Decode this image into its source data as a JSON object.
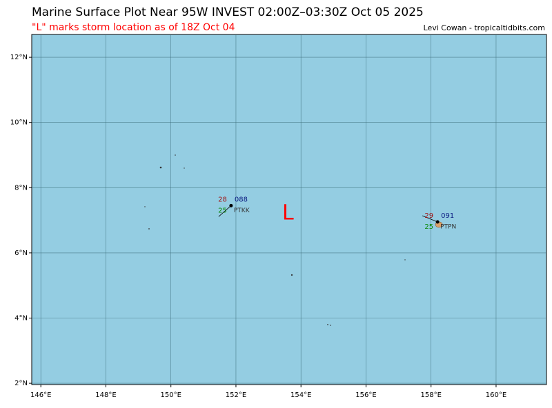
{
  "header": {
    "title": "Marine Surface Plot Near 95W INVEST 02:00Z–03:30Z Oct 05 2025",
    "subtitle": "\"L\" marks storm location as of 18Z Oct 04",
    "credit": "Levi Cowan - tropicaltidbits.com"
  },
  "map": {
    "xlim": [
      145.72,
      161.55
    ],
    "ylim": [
      1.96,
      12.7
    ],
    "xticks": [
      {
        "value": 146,
        "label": "146°E"
      },
      {
        "value": 148,
        "label": "148°E"
      },
      {
        "value": 150,
        "label": "150°E"
      },
      {
        "value": 152,
        "label": "152°E"
      },
      {
        "value": 154,
        "label": "154°E"
      },
      {
        "value": 156,
        "label": "156°E"
      },
      {
        "value": 158,
        "label": "158°E"
      },
      {
        "value": 160,
        "label": "160°E"
      }
    ],
    "yticks": [
      {
        "value": 2,
        "label": "2°N"
      },
      {
        "value": 4,
        "label": "4°N"
      },
      {
        "value": 6,
        "label": "6°N"
      },
      {
        "value": 8,
        "label": "8°N"
      },
      {
        "value": 10,
        "label": "10°N"
      },
      {
        "value": 12,
        "label": "12°N"
      }
    ],
    "storm": {
      "label": "L",
      "lon": 153.6,
      "lat": 7.2
    },
    "stations": [
      {
        "name": "PTKK",
        "lon": 151.85,
        "lat": 7.45,
        "temperature": 28,
        "dewpoint": 25,
        "pressure": "088"
      },
      {
        "name": "PTPN",
        "lon": 158.2,
        "lat": 6.95,
        "temperature": 29,
        "dewpoint": 25,
        "pressure": "091"
      }
    ]
  }
}
